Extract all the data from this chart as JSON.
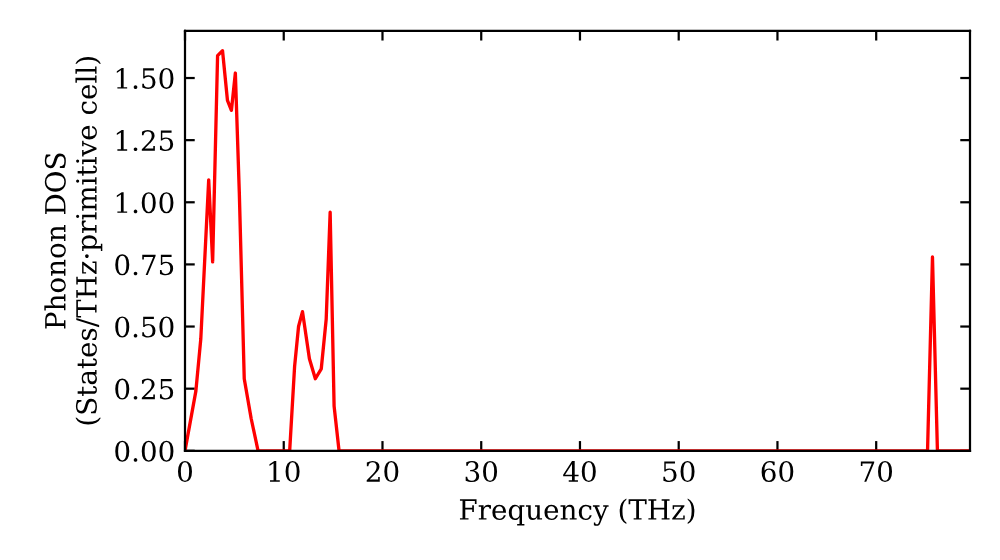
{
  "chart_data": {
    "type": "line",
    "xlabel": "Frequency (THz)",
    "ylabel": "Phonon DOS\n(States/THz·primitive cell)",
    "xlim": [
      0,
      79.5
    ],
    "ylim": [
      0,
      1.69
    ],
    "xticks": [
      0,
      10,
      20,
      30,
      40,
      50,
      60,
      70
    ],
    "yticks": [
      {
        "value": 0,
        "label": "0.00"
      },
      {
        "value": 0.25,
        "label": "0.25"
      },
      {
        "value": 0.5,
        "label": "0.50"
      },
      {
        "value": 0.75,
        "label": "0.75"
      },
      {
        "value": 1,
        "label": "1.00"
      },
      {
        "value": 1.25,
        "label": "1.25"
      },
      {
        "value": 1.5,
        "label": "1.50"
      }
    ],
    "grid": false,
    "series": [
      {
        "color": "#ff0000",
        "x": [
          0,
          1.1,
          1.6,
          2.4,
          2.8,
          3.3,
          3.8,
          4.3,
          4.7,
          5.1,
          5.5,
          6.0,
          6.7,
          7.4,
          10.6,
          11.1,
          11.5,
          11.9,
          12.6,
          13.2,
          13.8,
          14.3,
          14.7,
          15.1,
          15.6,
          75.2,
          75.7,
          76.2,
          79.5
        ],
        "values": [
          0,
          0.24,
          0.45,
          1.09,
          0.76,
          1.59,
          1.61,
          1.41,
          1.37,
          1.52,
          1.04,
          0.29,
          0.13,
          0,
          0,
          0.34,
          0.5,
          0.56,
          0.37,
          0.29,
          0.33,
          0.53,
          0.96,
          0.18,
          0,
          0,
          0.78,
          0,
          0
        ]
      }
    ]
  }
}
